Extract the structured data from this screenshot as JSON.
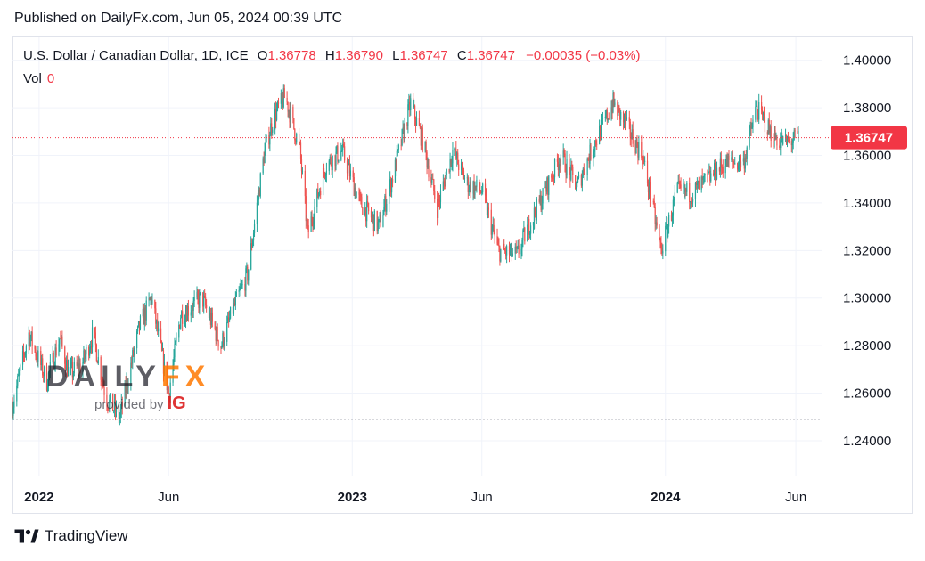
{
  "header": {
    "published": "Published on DailyFx.com, Jun 05, 2024 00:39 UTC"
  },
  "legend": {
    "symbol": "U.S. Dollar / Canadian Dollar, 1D, ICE",
    "o_label": "O",
    "o": "1.36778",
    "h_label": "H",
    "h": "1.36790",
    "l_label": "L",
    "l": "1.36747",
    "c_label": "C",
    "c": "1.36747",
    "change": "−0.00035 (−0.03%)",
    "vol_label": "Vol",
    "vol": "0"
  },
  "watermark": {
    "brand_a": "DAILY",
    "brand_b": "FX",
    "provided": "provided by",
    "ig": "IG"
  },
  "footer": {
    "brand": "TradingView"
  },
  "colors": {
    "up": "#26a69a",
    "down": "#ef5350",
    "grid": "#f0f3fa",
    "price_line": "#f23645",
    "support_line": "#9598a1"
  },
  "chart_data": {
    "type": "candlestick",
    "series_name": "USD/CAD",
    "ylim": [
      1.225,
      1.41
    ],
    "y_ticks": [
      "1.24000",
      "1.26000",
      "1.28000",
      "1.30000",
      "1.32000",
      "1.34000",
      "1.36000",
      "1.38000",
      "1.40000"
    ],
    "x_ticks": [
      {
        "label": "2022",
        "date": "2022-01-01",
        "bold": true
      },
      {
        "label": "Jun",
        "date": "2022-06-01",
        "bold": false
      },
      {
        "label": "2023",
        "date": "2023-01-01",
        "bold": true
      },
      {
        "label": "Jun",
        "date": "2023-06-01",
        "bold": false
      },
      {
        "label": "2024",
        "date": "2024-01-01",
        "bold": true
      },
      {
        "label": "Jun",
        "date": "2024-06-01",
        "bold": false
      }
    ],
    "xlim": [
      "2021-12-01",
      "2024-07-01"
    ],
    "current_price": "1.36747",
    "support_level": 1.249,
    "path": [
      [
        "2021-12-01",
        1.255
      ],
      [
        "2021-12-20",
        1.285
      ],
      [
        "2022-01-10",
        1.265
      ],
      [
        "2022-01-25",
        1.283
      ],
      [
        "2022-02-05",
        1.268
      ],
      [
        "2022-02-20",
        1.272
      ],
      [
        "2022-03-05",
        1.285
      ],
      [
        "2022-03-20",
        1.258
      ],
      [
        "2022-04-05",
        1.25
      ],
      [
        "2022-04-28",
        1.288
      ],
      [
        "2022-05-12",
        1.3
      ],
      [
        "2022-06-01",
        1.26
      ],
      [
        "2022-06-15",
        1.293
      ],
      [
        "2022-07-10",
        1.3
      ],
      [
        "2022-08-01",
        1.28
      ],
      [
        "2022-08-15",
        1.295
      ],
      [
        "2022-09-01",
        1.31
      ],
      [
        "2022-09-20",
        1.36
      ],
      [
        "2022-10-01",
        1.376
      ],
      [
        "2022-10-15",
        1.385
      ],
      [
        "2022-11-01",
        1.362
      ],
      [
        "2022-11-10",
        1.327
      ],
      [
        "2022-12-01",
        1.356
      ],
      [
        "2022-12-20",
        1.362
      ],
      [
        "2023-01-10",
        1.34
      ],
      [
        "2023-02-01",
        1.33
      ],
      [
        "2023-02-20",
        1.355
      ],
      [
        "2023-03-10",
        1.382
      ],
      [
        "2023-03-25",
        1.365
      ],
      [
        "2023-04-10",
        1.338
      ],
      [
        "2023-04-28",
        1.362
      ],
      [
        "2023-05-15",
        1.348
      ],
      [
        "2023-06-01",
        1.345
      ],
      [
        "2023-06-20",
        1.32
      ],
      [
        "2023-07-12",
        1.318
      ],
      [
        "2023-07-25",
        1.33
      ],
      [
        "2023-08-10",
        1.342
      ],
      [
        "2023-09-01",
        1.36
      ],
      [
        "2023-09-20",
        1.347
      ],
      [
        "2023-10-10",
        1.365
      ],
      [
        "2023-11-01",
        1.382
      ],
      [
        "2023-11-20",
        1.37
      ],
      [
        "2023-12-05",
        1.36
      ],
      [
        "2023-12-27",
        1.32
      ],
      [
        "2024-01-15",
        1.345
      ],
      [
        "2024-02-01",
        1.344
      ],
      [
        "2024-02-20",
        1.35
      ],
      [
        "2024-03-10",
        1.357
      ],
      [
        "2024-04-01",
        1.357
      ],
      [
        "2024-04-16",
        1.38
      ],
      [
        "2024-05-05",
        1.368
      ],
      [
        "2024-05-20",
        1.365
      ],
      [
        "2024-06-04",
        1.3675
      ]
    ]
  }
}
